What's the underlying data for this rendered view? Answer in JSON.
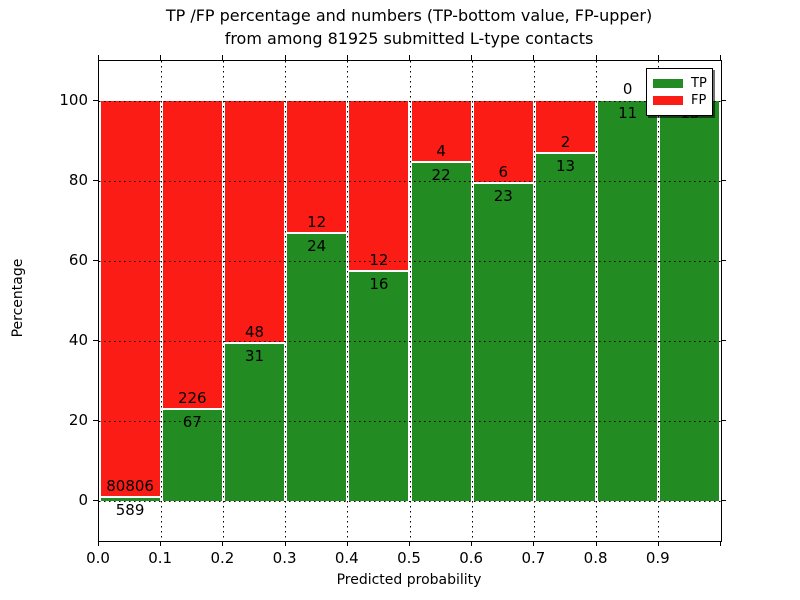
{
  "figure": {
    "title_line1": "TP /FP percentage and numbers (TP-bottom value, FP-upper)",
    "title_line2": "from among 81925 submitted L-type contacts"
  },
  "colors": {
    "tp_green": "#228b22",
    "fp_red": "#fb1d15",
    "background": "#ffffff",
    "text": "#000000"
  },
  "legend": {
    "items": [
      {
        "label": "TP",
        "color": "#228b22"
      },
      {
        "label": "FP",
        "color": "#fb1d15"
      }
    ]
  },
  "chart_data": {
    "type": "bar",
    "stacked": true,
    "normalized_to_percent": true,
    "title": "TP /FP percentage and numbers (TP-bottom value, FP-upper) from among 81925 submitted L-type contacts",
    "xlabel": "Predicted probability",
    "ylabel": "Percentage",
    "total_contacts": 81925,
    "bin_edges": [
      0.0,
      0.1,
      0.2,
      0.3,
      0.4,
      0.5,
      0.6,
      0.7,
      0.8,
      0.9,
      1.0
    ],
    "categories": [
      "0.0-0.1",
      "0.1-0.2",
      "0.2-0.3",
      "0.3-0.4",
      "0.4-0.5",
      "0.5-0.6",
      "0.6-0.7",
      "0.7-0.8",
      "0.8-0.9",
      "0.9-1.0"
    ],
    "series": [
      {
        "name": "TP",
        "color": "#228b22",
        "counts": [
          589,
          67,
          31,
          24,
          16,
          22,
          23,
          13,
          11,
          13
        ]
      },
      {
        "name": "FP",
        "color": "#fb1d15",
        "counts": [
          80806,
          226,
          48,
          12,
          12,
          4,
          6,
          2,
          0,
          0
        ]
      }
    ],
    "tp_percent": [
      0.72,
      22.87,
      39.24,
      66.67,
      57.14,
      84.62,
      79.31,
      86.67,
      100.0,
      100.0
    ],
    "xticks": [
      "0.0",
      "0.1",
      "0.2",
      "0.3",
      "0.4",
      "0.5",
      "0.6",
      "0.7",
      "0.8",
      "0.9"
    ],
    "yticks": [
      0,
      20,
      40,
      60,
      80,
      100
    ],
    "xlim": [
      0.0,
      1.0
    ],
    "ylim": [
      -10,
      110
    ],
    "grid": true,
    "legend_position": "upper right"
  }
}
